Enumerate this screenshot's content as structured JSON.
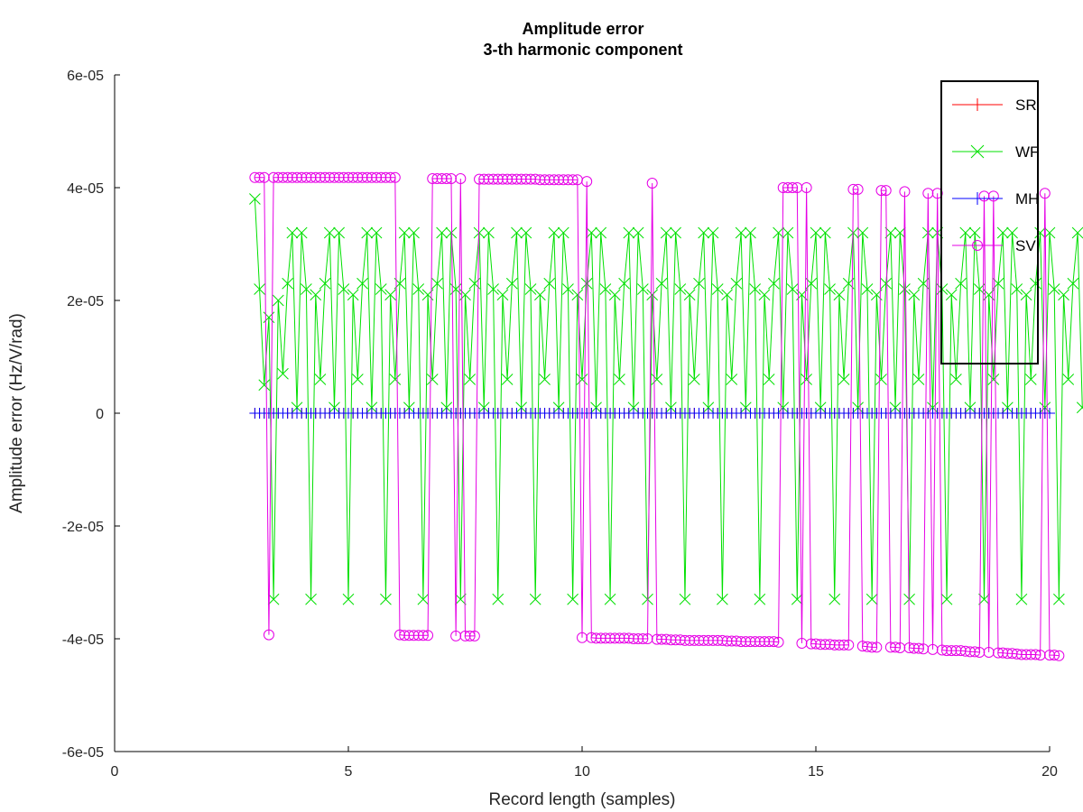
{
  "chart_data": {
    "type": "line",
    "title": "Amplitude error",
    "subtitle": "3-th harmonic component",
    "xlabel": "Record length (samples)",
    "ylabel": "Amplitude error (Hz/V/rad)",
    "xlim": [
      0,
      20
    ],
    "ylim": [
      -6e-05,
      6e-05
    ],
    "x_ticks": [
      0,
      5,
      10,
      15,
      20
    ],
    "x_tick_labels": [
      "0",
      "5",
      "10",
      "15",
      "20"
    ],
    "y_ticks": [
      -6e-05,
      -4e-05,
      -2e-05,
      0,
      2e-05,
      4e-05,
      6e-05
    ],
    "y_tick_labels": [
      "-6e-05",
      "-4e-05",
      "-2e-05",
      "0",
      "2e-05",
      "4e-05",
      "6e-05"
    ],
    "grid": false,
    "legend_position": "top-right",
    "x_start": 3,
    "x_step": 0.1,
    "series": [
      {
        "name": "SR",
        "color": "#ff0000",
        "marker": "plus",
        "values": [
          0,
          0,
          0,
          0,
          0,
          0,
          0,
          0,
          0,
          0,
          0,
          0,
          0,
          0,
          0,
          0,
          0,
          0,
          0,
          0,
          0,
          0,
          0,
          0,
          0,
          0,
          0,
          0,
          0,
          0,
          0,
          0,
          0,
          0,
          0,
          0,
          0,
          0,
          0,
          0,
          0,
          0,
          0,
          0,
          0,
          0,
          0,
          0,
          0,
          0,
          0,
          0,
          0,
          0,
          0,
          0,
          0,
          0,
          0,
          0,
          0,
          0,
          0,
          0,
          0,
          0,
          0,
          0,
          0,
          0,
          0,
          0,
          0,
          0,
          0,
          0,
          0,
          0,
          0,
          0,
          0,
          0,
          0,
          0,
          0,
          0,
          0,
          0,
          0,
          0,
          0,
          0,
          0,
          0,
          0,
          0,
          0,
          0,
          0,
          0,
          0,
          0,
          0,
          0,
          0,
          0,
          0,
          0,
          0,
          0,
          0,
          0,
          0,
          0,
          0,
          0,
          0,
          0,
          0,
          0,
          0,
          0,
          0,
          0,
          0,
          0,
          0,
          0,
          0,
          0,
          0,
          0,
          0,
          0,
          0,
          0,
          0,
          0,
          0,
          0,
          0,
          0,
          0,
          0,
          0,
          0,
          0,
          0,
          0,
          0,
          0,
          0,
          0,
          0,
          0,
          0,
          0,
          0,
          0,
          0,
          0,
          0,
          0,
          0,
          0,
          0,
          0,
          0,
          0,
          0,
          0
        ]
      },
      {
        "name": "WF",
        "color": "#00e000",
        "marker": "x",
        "values": [
          3.8e-05,
          2.2e-05,
          5e-06,
          1.7e-05,
          -3.3e-05,
          2e-05,
          7e-06,
          2.3e-05,
          3.2e-05,
          1e-06,
          3.2e-05,
          2.2e-05,
          -3.3e-05,
          2.1e-05,
          6e-06,
          2.3e-05,
          3.2e-05,
          1e-06,
          3.2e-05,
          2.2e-05,
          -3.3e-05,
          2.1e-05,
          6e-06,
          2.3e-05,
          3.2e-05,
          1e-06,
          3.2e-05,
          2.2e-05,
          -3.3e-05,
          2.1e-05,
          6e-06,
          2.3e-05,
          3.2e-05,
          1e-06,
          3.2e-05,
          2.2e-05,
          -3.3e-05,
          2.1e-05,
          6e-06,
          2.3e-05,
          3.2e-05,
          1e-06,
          3.2e-05,
          2.2e-05,
          -3.3e-05,
          2.1e-05,
          6e-06,
          2.3e-05,
          3.2e-05,
          1e-06,
          3.2e-05,
          2.2e-05,
          -3.3e-05,
          2.1e-05,
          6e-06,
          2.3e-05,
          3.2e-05,
          1e-06,
          3.2e-05,
          2.2e-05,
          -3.3e-05,
          2.1e-05,
          6e-06,
          2.3e-05,
          3.2e-05,
          1e-06,
          3.2e-05,
          2.2e-05,
          -3.3e-05,
          2.1e-05,
          6e-06,
          2.3e-05,
          3.2e-05,
          1e-06,
          3.2e-05,
          2.2e-05,
          -3.3e-05,
          2.1e-05,
          6e-06,
          2.3e-05,
          3.2e-05,
          1e-06,
          3.2e-05,
          2.2e-05,
          -3.3e-05,
          2.1e-05,
          6e-06,
          2.3e-05,
          3.2e-05,
          1e-06,
          3.2e-05,
          2.2e-05,
          -3.3e-05,
          2.1e-05,
          6e-06,
          2.3e-05,
          3.2e-05,
          1e-06,
          3.2e-05,
          2.2e-05,
          -3.3e-05,
          2.1e-05,
          6e-06,
          2.3e-05,
          3.2e-05,
          1e-06,
          3.2e-05,
          2.2e-05,
          -3.3e-05,
          2.1e-05,
          6e-06,
          2.3e-05,
          3.2e-05,
          1e-06,
          3.2e-05,
          2.2e-05,
          -3.3e-05,
          2.1e-05,
          6e-06,
          2.3e-05,
          3.2e-05,
          1e-06,
          3.2e-05,
          2.2e-05,
          -3.3e-05,
          2.1e-05,
          6e-06,
          2.3e-05,
          3.2e-05,
          1e-06,
          3.2e-05,
          2.2e-05,
          -3.3e-05,
          2.1e-05,
          6e-06,
          2.3e-05,
          3.2e-05,
          1e-06,
          3.2e-05,
          2.2e-05,
          -3.3e-05,
          2.1e-05,
          6e-06,
          2.3e-05,
          3.2e-05,
          1e-06,
          3.2e-05,
          2.2e-05,
          -3.3e-05,
          2.1e-05,
          6e-06,
          2.3e-05,
          3.2e-05,
          1e-06,
          3.2e-05,
          2.2e-05,
          -3.3e-05,
          2.1e-05,
          6e-06,
          2.3e-05,
          3.2e-05,
          1e-06,
          3.2e-05,
          2.2e-05,
          -3.3e-05,
          2.1e-05,
          6e-06,
          2.3e-05,
          3.2e-05,
          1e-06,
          3.2e-05,
          2.2e-05,
          -3.3e-05,
          2.1e-05,
          6e-06,
          2.3e-05,
          3.2e-05,
          1e-06
        ]
      },
      {
        "name": "MH",
        "color": "#0000ff",
        "marker": "plus",
        "values": [
          0,
          0,
          0,
          0,
          0,
          0,
          0,
          0,
          0,
          0,
          0,
          0,
          0,
          0,
          0,
          0,
          0,
          0,
          0,
          0,
          0,
          0,
          0,
          0,
          0,
          0,
          0,
          0,
          0,
          0,
          0,
          0,
          0,
          0,
          0,
          0,
          0,
          0,
          0,
          0,
          0,
          0,
          0,
          0,
          0,
          0,
          0,
          0,
          0,
          0,
          0,
          0,
          0,
          0,
          0,
          0,
          0,
          0,
          0,
          0,
          0,
          0,
          0,
          0,
          0,
          0,
          0,
          0,
          0,
          0,
          0,
          0,
          0,
          0,
          0,
          0,
          0,
          0,
          0,
          0,
          0,
          0,
          0,
          0,
          0,
          0,
          0,
          0,
          0,
          0,
          0,
          0,
          0,
          0,
          0,
          0,
          0,
          0,
          0,
          0,
          0,
          0,
          0,
          0,
          0,
          0,
          0,
          0,
          0,
          0,
          0,
          0,
          0,
          0,
          0,
          0,
          0,
          0,
          0,
          0,
          0,
          0,
          0,
          0,
          0,
          0,
          0,
          0,
          0,
          0,
          0,
          0,
          0,
          0,
          0,
          0,
          0,
          0,
          0,
          0,
          0,
          0,
          0,
          0,
          0,
          0,
          0,
          0,
          0,
          0,
          0,
          0,
          0,
          0,
          0,
          0,
          0,
          0,
          0,
          0,
          0,
          0,
          0,
          0,
          0,
          0,
          0,
          0,
          0,
          0,
          0
        ]
      },
      {
        "name": "SV",
        "color": "#e600e6",
        "marker": "circle",
        "values": [
          4.18e-05,
          4.18e-05,
          4.18e-05,
          -3.93e-05,
          4.18e-05,
          4.18e-05,
          4.18e-05,
          4.18e-05,
          4.18e-05,
          4.18e-05,
          4.18e-05,
          4.18e-05,
          4.18e-05,
          4.18e-05,
          4.18e-05,
          4.18e-05,
          4.18e-05,
          4.18e-05,
          4.18e-05,
          4.18e-05,
          4.18e-05,
          4.18e-05,
          4.18e-05,
          4.18e-05,
          4.18e-05,
          4.18e-05,
          4.18e-05,
          4.18e-05,
          4.18e-05,
          4.18e-05,
          4.18e-05,
          -3.93e-05,
          -3.94e-05,
          -3.94e-05,
          -3.94e-05,
          -3.94e-05,
          -3.94e-05,
          -3.94e-05,
          4.16e-05,
          4.16e-05,
          4.16e-05,
          4.16e-05,
          4.16e-05,
          -3.95e-05,
          4.16e-05,
          -3.95e-05,
          -3.95e-05,
          -3.95e-05,
          4.15e-05,
          4.15e-05,
          4.15e-05,
          4.15e-05,
          4.15e-05,
          4.15e-05,
          4.15e-05,
          4.15e-05,
          4.15e-05,
          4.15e-05,
          4.15e-05,
          4.15e-05,
          4.15e-05,
          4.14e-05,
          4.14e-05,
          4.14e-05,
          4.14e-05,
          4.14e-05,
          4.14e-05,
          4.14e-05,
          4.14e-05,
          4.14e-05,
          -3.98e-05,
          4.11e-05,
          -3.98e-05,
          -3.99e-05,
          -3.99e-05,
          -3.99e-05,
          -3.99e-05,
          -3.99e-05,
          -3.99e-05,
          -3.99e-05,
          -3.99e-05,
          -4e-05,
          -4e-05,
          -4e-05,
          -4e-05,
          4.08e-05,
          -4.01e-05,
          -4.01e-05,
          -4.01e-05,
          -4.02e-05,
          -4.02e-05,
          -4.02e-05,
          -4.03e-05,
          -4.03e-05,
          -4.03e-05,
          -4.03e-05,
          -4.03e-05,
          -4.03e-05,
          -4.03e-05,
          -4.03e-05,
          -4.03e-05,
          -4.04e-05,
          -4.04e-05,
          -4.04e-05,
          -4.05e-05,
          -4.05e-05,
          -4.05e-05,
          -4.05e-05,
          -4.05e-05,
          -4.05e-05,
          -4.05e-05,
          -4.05e-05,
          -4.06e-05,
          4e-05,
          4e-05,
          4e-05,
          4e-05,
          -4.08e-05,
          4e-05,
          -4.09e-05,
          -4.09e-05,
          -4.1e-05,
          -4.1e-05,
          -4.1e-05,
          -4.11e-05,
          -4.11e-05,
          -4.11e-05,
          -4.11e-05,
          3.97e-05,
          3.97e-05,
          -4.13e-05,
          -4.14e-05,
          -4.15e-05,
          -4.15e-05,
          3.95e-05,
          3.95e-05,
          -4.15e-05,
          -4.15e-05,
          -4.16e-05,
          3.93e-05,
          -4.16e-05,
          -4.17e-05,
          -4.17e-05,
          -4.18e-05,
          3.9e-05,
          -4.19e-05,
          3.9e-05,
          -4.2e-05,
          -4.21e-05,
          -4.21e-05,
          -4.21e-05,
          -4.21e-05,
          -4.22e-05,
          -4.23e-05,
          -4.23e-05,
          -4.24e-05,
          3.85e-05,
          -4.24e-05,
          3.85e-05,
          -4.25e-05,
          -4.25e-05,
          -4.26e-05,
          -4.26e-05,
          -4.27e-05,
          -4.28e-05,
          -4.28e-05,
          -4.28e-05,
          -4.28e-05,
          -4.29e-05,
          3.9e-05,
          -4.29e-05,
          -4.29e-05,
          -4.3e-05
        ]
      }
    ]
  }
}
